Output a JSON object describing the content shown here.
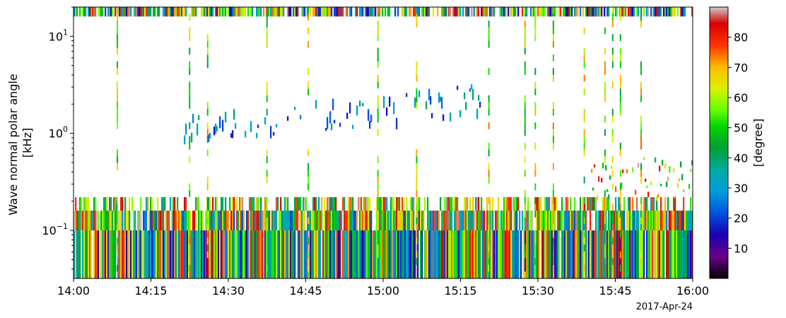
{
  "chart_data": {
    "type": "heatmap",
    "xlabel": "",
    "ylabel": [
      "Wave normal polar angle",
      "[kHz]"
    ],
    "date_label": "2017-Apr-24",
    "x_ticks": [
      "14:00",
      "14:15",
      "14:30",
      "14:45",
      "15:00",
      "15:15",
      "15:30",
      "15:45",
      "16:00"
    ],
    "x_range_minutes": [
      0,
      120
    ],
    "y_scale": "log",
    "y_range_khz": [
      0.032,
      20
    ],
    "y_ticks": [
      {
        "value": 0.1,
        "base": "10",
        "exp": "−1"
      },
      {
        "value": 1,
        "base": "10",
        "exp": "0"
      },
      {
        "value": 10,
        "base": "10",
        "exp": "1"
      }
    ],
    "colorbar": {
      "label": "[degree]",
      "range": [
        0,
        90
      ],
      "ticks": [
        "10",
        "20",
        "30",
        "40",
        "50",
        "60",
        "70",
        "80"
      ],
      "colormap": "nipy_spectral"
    },
    "features": [
      {
        "name": "dense low-frequency band",
        "freq_khz": [
          0.032,
          0.1
        ],
        "coverage": 0.97,
        "angle_range": [
          10,
          90
        ]
      },
      {
        "name": "mid low-frequency band",
        "freq_khz": [
          0.1,
          0.16
        ],
        "coverage": 0.9,
        "angle_range": [
          20,
          90
        ]
      },
      {
        "name": "upper low-frequency band",
        "freq_khz": [
          0.16,
          0.22
        ],
        "coverage": 0.5,
        "angle_range": [
          30,
          90
        ]
      },
      {
        "name": "top band",
        "freq_khz": [
          16,
          20
        ],
        "coverage": 0.8,
        "angle_range": [
          10,
          90
        ]
      },
      {
        "name": "rising whistler band",
        "start_min": 21,
        "end_min": 80,
        "freq_start_khz": 1.0,
        "freq_end_khz": 2.2,
        "angle_range": [
          15,
          40
        ]
      },
      {
        "name": "late patches",
        "start_min": 100,
        "end_min": 120,
        "freq_khz": [
          0.22,
          0.6
        ],
        "angle_range": [
          40,
          90
        ]
      }
    ],
    "vertical_streaks_min": [
      8.5,
      22.5,
      26,
      37.5,
      45.5,
      59,
      66.5,
      80.5,
      87.5,
      89.5,
      93,
      99,
      103,
      104.5,
      106,
      110
    ]
  }
}
